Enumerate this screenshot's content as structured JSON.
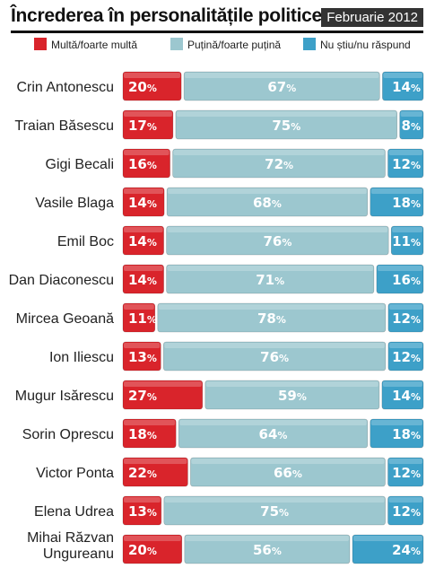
{
  "header": {
    "title": "Încrederea în personalitățile politice",
    "date": "Februarie 2012"
  },
  "colors": {
    "multa": "#d9242b",
    "putina": "#9cc7cf",
    "nustiu": "#3da0c8"
  },
  "chart_data": {
    "type": "bar",
    "stacked": true,
    "orientation": "horizontal",
    "categories": [
      "Crin Antonescu",
      "Traian Băsescu",
      "Gigi Becali",
      "Vasile Blaga",
      "Emil Boc",
      "Dan Diaconescu",
      "Mircea Geoană",
      "Ion Iliescu",
      "Mugur Isărescu",
      "Sorin Oprescu",
      "Victor Ponta",
      "Elena Udrea",
      "Mihai Răzvan Ungureanu"
    ],
    "series": [
      {
        "name": "Multă/foarte multă",
        "values": [
          20,
          17,
          16,
          14,
          14,
          14,
          11,
          13,
          27,
          18,
          22,
          13,
          20
        ]
      },
      {
        "name": "Puțină/foarte puțină",
        "values": [
          67,
          75,
          72,
          68,
          76,
          71,
          78,
          76,
          59,
          64,
          66,
          75,
          56
        ]
      },
      {
        "name": "Nu știu/nu răspund",
        "values": [
          14,
          8,
          12,
          18,
          11,
          16,
          12,
          12,
          14,
          18,
          12,
          12,
          24
        ]
      }
    ],
    "value_suffix": "%",
    "legend": "top"
  }
}
